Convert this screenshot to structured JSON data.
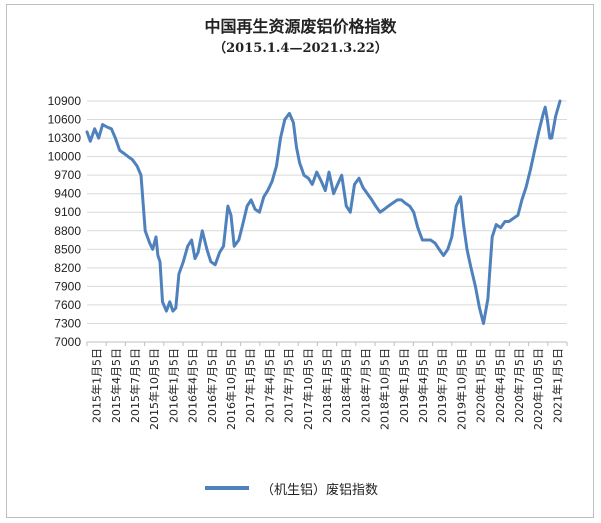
{
  "chart_data": {
    "type": "line",
    "title": "中国再生资源废铝价格指数",
    "subtitle": "（2015.1.4—2021.3.22）",
    "ylim": [
      7000,
      10900
    ],
    "yticks": [
      7000,
      7300,
      7600,
      7900,
      8200,
      8500,
      8800,
      9100,
      9400,
      9700,
      10000,
      10300,
      10600,
      10900
    ],
    "xticks": [
      "2015年1月5日",
      "2015年4月5日",
      "2015年7月5日",
      "2015年10月5日",
      "2016年1月5日",
      "2016年4月5日",
      "2016年7月5日",
      "2016年10月5日",
      "2017年1月5日",
      "2017年4月5日",
      "2017年7月5日",
      "2017年10月5日",
      "2018年1月5日",
      "2018年4月5日",
      "2018年7月5日",
      "2018年10月5日",
      "2019年1月5日",
      "2019年4月5日",
      "2019年7月5日",
      "2019年10月5日",
      "2020年1月5日",
      "2020年4月5日",
      "2020年7月5日",
      "2020年10月5日",
      "2021年1月5日"
    ],
    "grid": "horizontal",
    "legend": "bottom",
    "series": [
      {
        "name": "（机生铝）废铝指数",
        "color": "#4f81bd",
        "x": [
          "2015-01-04",
          "2015-01-20",
          "2015-02-10",
          "2015-03-01",
          "2015-03-20",
          "2015-04-10",
          "2015-05-01",
          "2015-05-20",
          "2015-06-10",
          "2015-07-01",
          "2015-07-20",
          "2015-08-10",
          "2015-09-01",
          "2015-09-20",
          "2015-10-10",
          "2015-11-01",
          "2015-11-15",
          "2015-12-01",
          "2015-12-10",
          "2015-12-20",
          "2016-01-01",
          "2016-01-20",
          "2016-02-05",
          "2016-02-20",
          "2016-03-05",
          "2016-03-20",
          "2016-04-10",
          "2016-05-01",
          "2016-05-20",
          "2016-06-05",
          "2016-06-20",
          "2016-07-10",
          "2016-08-01",
          "2016-08-20",
          "2016-09-10",
          "2016-10-01",
          "2016-10-20",
          "2016-11-10",
          "2016-11-25",
          "2016-12-10",
          "2017-01-01",
          "2017-01-20",
          "2017-02-10",
          "2017-03-01",
          "2017-03-20",
          "2017-04-10",
          "2017-05-01",
          "2017-05-20",
          "2017-06-10",
          "2017-07-01",
          "2017-07-20",
          "2017-08-10",
          "2017-09-01",
          "2017-09-20",
          "2017-10-05",
          "2017-10-20",
          "2017-11-10",
          "2017-12-01",
          "2017-12-20",
          "2018-01-10",
          "2018-02-01",
          "2018-02-20",
          "2018-03-10",
          "2018-04-01",
          "2018-04-20",
          "2018-05-10",
          "2018-06-01",
          "2018-06-20",
          "2018-07-10",
          "2018-08-01",
          "2018-08-20",
          "2018-09-10",
          "2018-10-01",
          "2018-10-20",
          "2018-11-10",
          "2018-12-01",
          "2018-12-20",
          "2019-01-10",
          "2019-02-01",
          "2019-02-20",
          "2019-03-10",
          "2019-04-01",
          "2019-04-20",
          "2019-05-10",
          "2019-06-01",
          "2019-06-20",
          "2019-07-10",
          "2019-08-01",
          "2019-08-20",
          "2019-09-10",
          "2019-10-01",
          "2019-10-20",
          "2019-11-10",
          "2019-12-01",
          "2019-12-15",
          "2020-01-01",
          "2020-01-20",
          "2020-02-10",
          "2020-03-01",
          "2020-03-20",
          "2020-04-10",
          "2020-04-20",
          "2020-05-01",
          "2020-05-20",
          "2020-06-10",
          "2020-07-01",
          "2020-07-20",
          "2020-08-10",
          "2020-09-01",
          "2020-09-20",
          "2020-10-10",
          "2020-11-01",
          "2020-11-20",
          "2020-12-10",
          "2021-01-01",
          "2021-01-10",
          "2021-01-20",
          "2021-02-01",
          "2021-02-10",
          "2021-03-01",
          "2021-03-22"
        ],
        "values": [
          10400,
          10250,
          10450,
          10300,
          10520,
          10480,
          10450,
          10300,
          10100,
          10050,
          10000,
          9950,
          9850,
          9700,
          8800,
          8600,
          8500,
          8700,
          8400,
          8300,
          7650,
          7500,
          7650,
          7500,
          7550,
          8100,
          8300,
          8550,
          8650,
          8350,
          8450,
          8800,
          8500,
          8300,
          8250,
          8450,
          8550,
          9200,
          9050,
          8550,
          8650,
          8900,
          9200,
          9300,
          9150,
          9100,
          9350,
          9450,
          9600,
          9850,
          10300,
          10600,
          10700,
          10550,
          10150,
          9900,
          9700,
          9650,
          9550,
          9750,
          9600,
          9450,
          9750,
          9400,
          9550,
          9700,
          9200,
          9100,
          9550,
          9650,
          9500,
          9400,
          9300,
          9200,
          9100,
          9150,
          9200,
          9250,
          9300,
          9300,
          9250,
          9200,
          9100,
          8850,
          8650,
          8650,
          8650,
          8600,
          8500,
          8400,
          8500,
          8700,
          9200,
          9350,
          8900,
          8500,
          8200,
          7900,
          7550,
          7300,
          7700,
          8200,
          8700,
          8900,
          8850,
          8950,
          8950,
          9000,
          9050,
          9300,
          9500,
          9800,
          10100,
          10400,
          10700,
          10800,
          10600,
          10300,
          10300,
          10650,
          10900
        ]
      }
    ]
  }
}
